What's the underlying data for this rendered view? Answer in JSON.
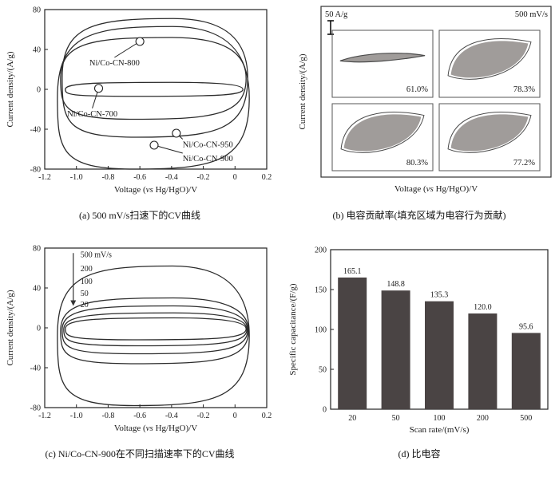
{
  "chart_data": [
    {
      "id": "a",
      "type": "line",
      "subtype": "cv-loops",
      "caption": "(a) 500 mV/s扫速下的CV曲线",
      "xlabel": "Voltage (vs Hg/HgO)/V",
      "ylabel": "Current density/(A/g)",
      "xlim": [
        -1.2,
        0.2
      ],
      "ylim": [
        -80,
        80
      ],
      "xticks": [
        -1.2,
        -1.0,
        -0.8,
        -0.6,
        -0.4,
        -0.2,
        0,
        0.2
      ],
      "xtick_labels": [
        "-1.2",
        "-1.0",
        "-0.8",
        "-0.6",
        "-0.4",
        "-0.2",
        "0",
        "0.2"
      ],
      "yticks": [
        -80,
        -40,
        0,
        40,
        80
      ],
      "ytick_labels": [
        "-80",
        "-40",
        "0",
        "40",
        "80"
      ],
      "line_color": "#2b2b2b",
      "loops": [
        {
          "name": "Ni/Co-CN-700",
          "x0": -1.07,
          "x1": 0.05,
          "top": 7,
          "bot": -7
        },
        {
          "name": "Ni/Co-CN-800",
          "x0": -1.1,
          "x1": 0.07,
          "top": 52,
          "bot": -30
        },
        {
          "name": "Ni/Co-CN-950",
          "x0": -1.09,
          "x1": 0.08,
          "top": 71,
          "bot": -48
        },
        {
          "name": "Ni/Co-CN-900",
          "x0": -1.12,
          "x1": 0.09,
          "top": 63,
          "bot": -80
        }
      ],
      "annotations": [
        {
          "label": "Ni/Co-CN-800",
          "cx": -0.6,
          "cy": 48,
          "tx": -0.76,
          "ty": 24,
          "anchor": "middle"
        },
        {
          "label": "Ni/Co-CN-700",
          "cx": -0.86,
          "cy": 1,
          "tx": -0.9,
          "ty": -27,
          "anchor": "middle"
        },
        {
          "label": "Ni/Co-CN-950",
          "cx": -0.37,
          "cy": -44,
          "tx": -0.33,
          "ty": -58,
          "anchor": "start"
        },
        {
          "label": "Ni/Co-CN-900",
          "cx": -0.51,
          "cy": -56,
          "tx": -0.33,
          "ty": -72,
          "anchor": "start"
        }
      ]
    },
    {
      "id": "b",
      "type": "area",
      "subtype": "capacitance-contribution",
      "caption": "(b) 电容贡献率(填充区域为电容行为贡献)",
      "xlabel": "Voltage (vs Hg/HgO)/V",
      "ylabel": "Current density/(A/g)",
      "scale_label": "50 A/g",
      "rate_label": "500 mV/s",
      "fill_color": "#a09c9a",
      "line_color": "#4a4a4a",
      "cells": [
        {
          "pct": "61.0%",
          "shape": "sliver"
        },
        {
          "pct": "78.3%",
          "shape": "leaf"
        },
        {
          "pct": "80.3%",
          "shape": "leaf"
        },
        {
          "pct": "77.2%",
          "shape": "leaf"
        }
      ]
    },
    {
      "id": "c",
      "type": "line",
      "subtype": "cv-loops",
      "caption": "(c) Ni/Co-CN-900在不同扫描速率下的CV曲线",
      "xlabel": "Voltage (vs Hg/HgO)/V",
      "ylabel": "Current density/(A/g)",
      "xlim": [
        -1.2,
        0.2
      ],
      "ylim": [
        -80,
        80
      ],
      "xticks": [
        -1.2,
        -1.0,
        -0.8,
        -0.6,
        -0.4,
        -0.2,
        0,
        0.2
      ],
      "xtick_labels": [
        "-1.2",
        "-1.0",
        "-0.8",
        "-0.6",
        "-0.4",
        "-0.2",
        "0",
        "0.2"
      ],
      "yticks": [
        -80,
        -40,
        0,
        40,
        80
      ],
      "ytick_labels": [
        "-80",
        "-40",
        "0",
        "40",
        "80"
      ],
      "line_color": "#2b2b2b",
      "scan_labels": [
        "500 mV/s",
        "200",
        "100",
        "50",
        "20"
      ],
      "loops": [
        {
          "name": "500",
          "x0": -1.12,
          "x1": 0.09,
          "top": 62,
          "bot": -78
        },
        {
          "name": "200",
          "x0": -1.1,
          "x1": 0.085,
          "top": 30,
          "bot": -36
        },
        {
          "name": "100",
          "x0": -1.09,
          "x1": 0.08,
          "top": 22,
          "bot": -26
        },
        {
          "name": "50",
          "x0": -1.08,
          "x1": 0.075,
          "top": 15,
          "bot": -18
        },
        {
          "name": "20",
          "x0": -1.07,
          "x1": 0.07,
          "top": 10,
          "bot": -12
        }
      ]
    },
    {
      "id": "d",
      "type": "bar",
      "caption": "(d) 比电容",
      "xlabel": "Scan rate/(mV/s)",
      "ylabel": "Specific capacitance/(F/g)",
      "categories": [
        "20",
        "50",
        "100",
        "200",
        "500"
      ],
      "values": [
        165.1,
        148.8,
        135.3,
        120.0,
        95.6
      ],
      "value_labels": [
        "165.1",
        "148.8",
        "135.3",
        "120.0",
        "95.6"
      ],
      "ylim": [
        0,
        200
      ],
      "yticks": [
        0,
        50,
        100,
        150,
        200
      ],
      "ytick_labels": [
        "0",
        "50",
        "100",
        "150",
        "200"
      ],
      "bar_color": "#4a4444"
    }
  ]
}
